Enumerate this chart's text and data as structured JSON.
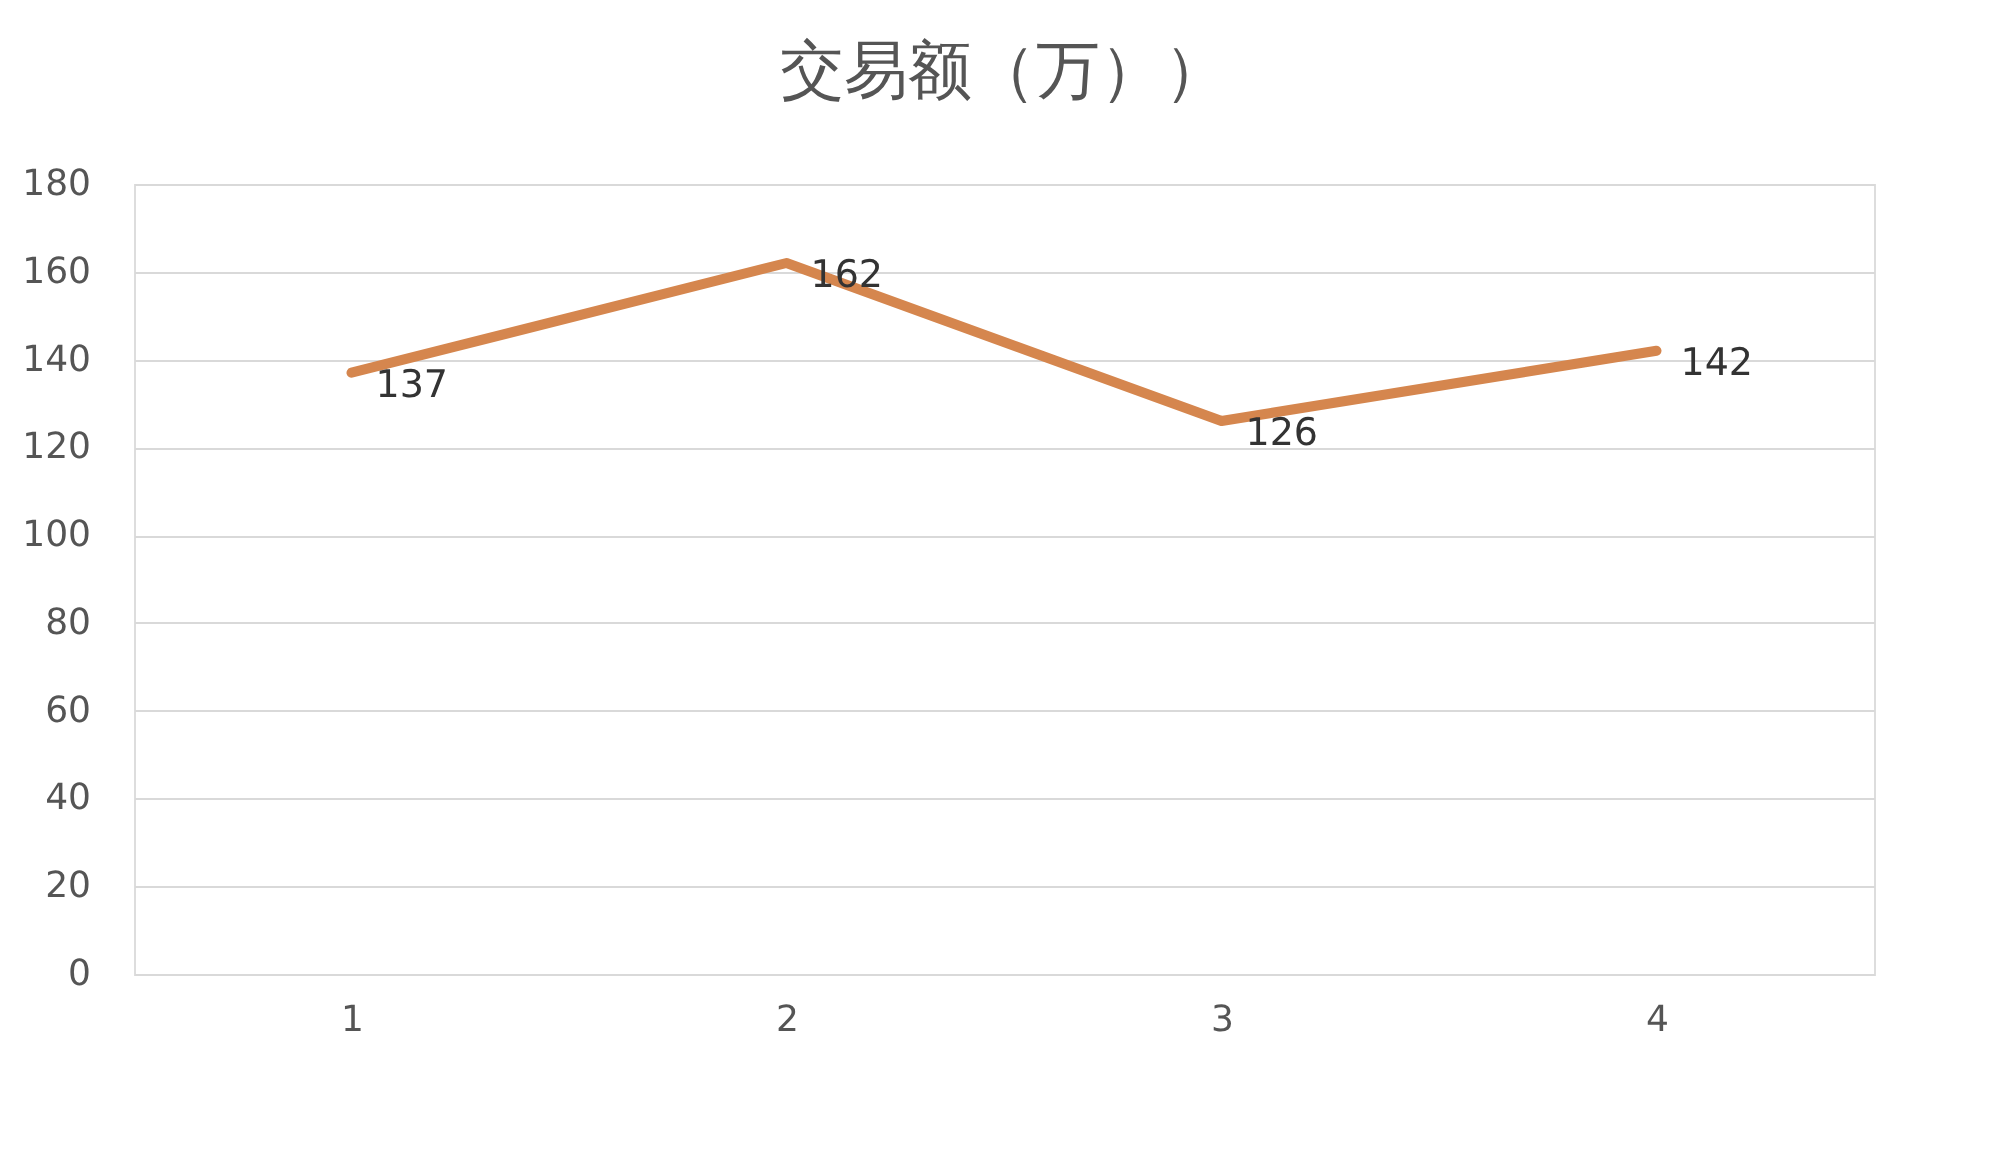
{
  "chart_data": {
    "type": "line",
    "title": "交易额（万））",
    "categories": [
      "1",
      "2",
      "3",
      "4"
    ],
    "series": [
      {
        "color": "#d5864e",
        "values": [
          137,
          162,
          126,
          142
        ]
      }
    ],
    "ylim": [
      0,
      180
    ],
    "yticks": [
      0,
      20,
      40,
      60,
      80,
      100,
      120,
      140,
      160,
      180
    ],
    "grid": "y",
    "data_labels": true,
    "legend": false,
    "marker": "none",
    "line_style": "solid"
  }
}
